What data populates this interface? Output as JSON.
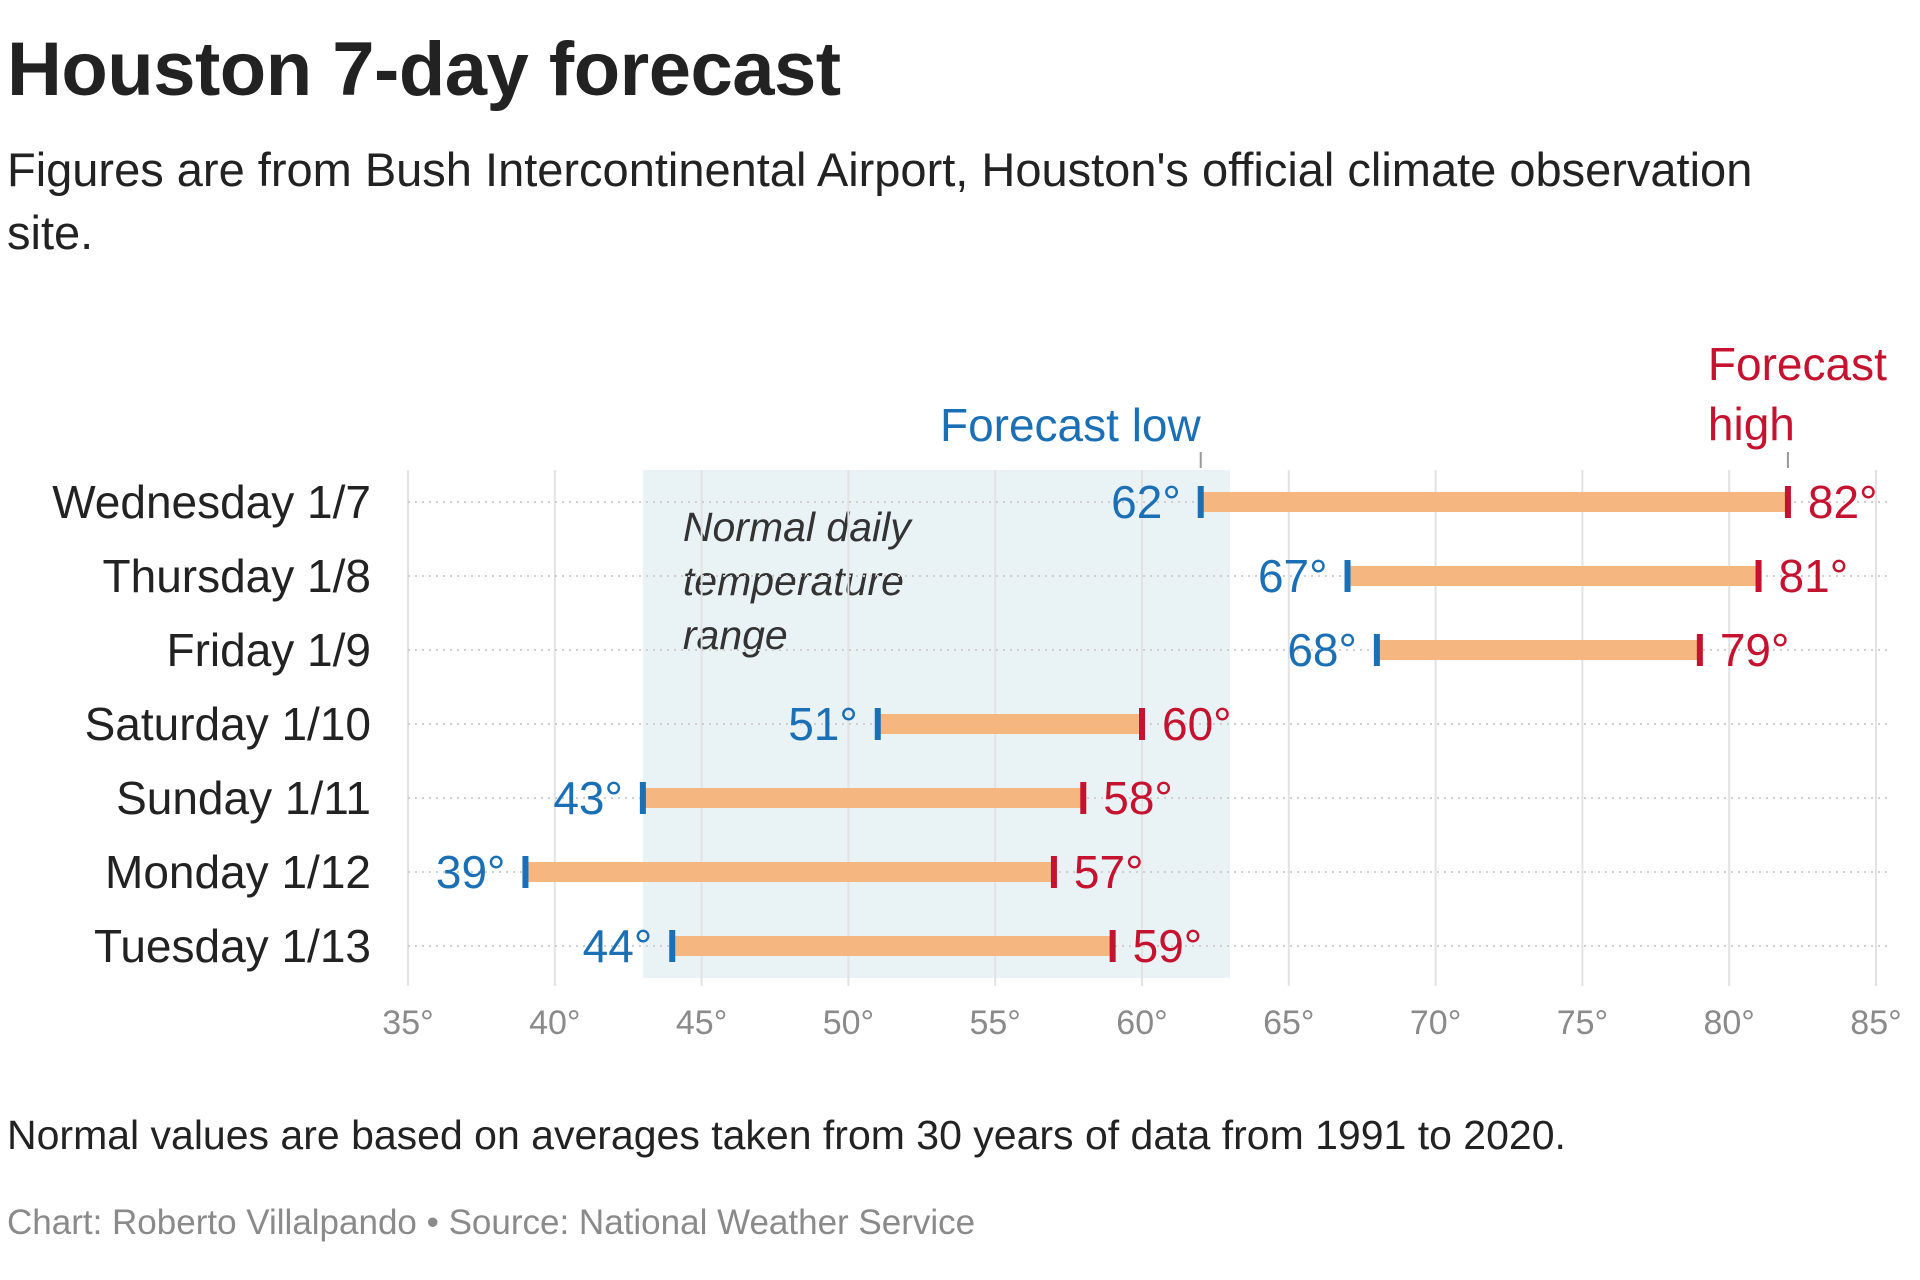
{
  "title": "Houston 7-day forecast",
  "subtitle": "Figures are from Bush Intercontinental Airport, Houston's official climate observation site.",
  "note": "Normal values are based on averages taken from 30 years of data from 1991 to 2020.",
  "credit": "Chart: Roberto Villalpando • Source: National Weather Service",
  "colors": {
    "low": "#1a6fb5",
    "high": "#c4122f",
    "bar": "#f5b77f",
    "normal_band": "#e9f3f6",
    "grid": "#e2e2e2",
    "row_line": "#cfcfcf"
  },
  "chart_data": {
    "type": "range-bar",
    "xlim": [
      35,
      85
    ],
    "x_ticks": [
      35,
      40,
      45,
      50,
      55,
      60,
      65,
      70,
      75,
      80,
      85
    ],
    "x_tick_labels": [
      "35°",
      "40°",
      "45°",
      "50°",
      "55°",
      "60°",
      "65°",
      "70°",
      "75°",
      "80°",
      "85°"
    ],
    "categories": [
      "Wednesday 1/7",
      "Thursday 1/8",
      "Friday 1/9",
      "Saturday 1/10",
      "Sunday 1/11",
      "Monday 1/12",
      "Tuesday 1/13"
    ],
    "series": [
      {
        "name": "Forecast low",
        "values": [
          62,
          67,
          68,
          51,
          43,
          39,
          44
        ]
      },
      {
        "name": "Forecast high",
        "values": [
          82,
          81,
          79,
          60,
          58,
          57,
          59
        ]
      }
    ],
    "low_labels": [
      "62°",
      "67°",
      "68°",
      "51°",
      "43°",
      "39°",
      "44°"
    ],
    "high_labels": [
      "82°",
      "81°",
      "79°",
      "60°",
      "58°",
      "57°",
      "59°"
    ],
    "normal_range": {
      "low": 43,
      "high": 63,
      "label_lines": [
        "Normal daily",
        "temperature",
        "range"
      ]
    },
    "legend": {
      "low_lines": [
        "Forecast low"
      ],
      "high_lines": [
        "Forecast",
        "high"
      ]
    },
    "grid": true
  }
}
